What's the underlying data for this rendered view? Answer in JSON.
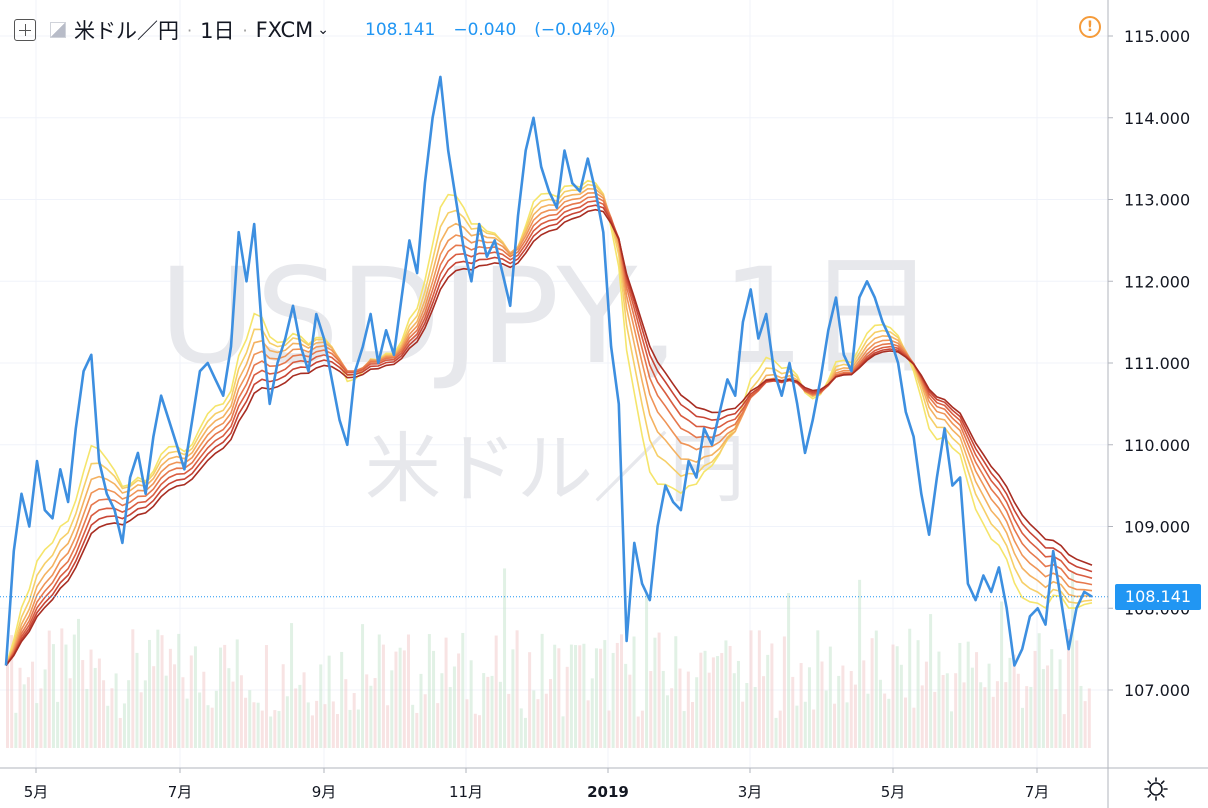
{
  "header": {
    "symbol": "米ドル／円",
    "interval": "1日",
    "exchange": "FXCM",
    "last_price": "108.141",
    "change": "−0.040",
    "change_pct": "(−0.04%)"
  },
  "watermark": {
    "line1": "USDJPY, 1日",
    "line2": "米ドル／円"
  },
  "price_label": "108.141",
  "colors": {
    "price_line": "#3d8fe0",
    "price_tag": "#2196f3",
    "alert": "#f59b3a",
    "ribbon": [
      "#f5e56b",
      "#f6cf68",
      "#f4b261",
      "#ef9457",
      "#e6784d",
      "#d95d41",
      "#c84535",
      "#a82d22"
    ]
  },
  "chart_data": {
    "type": "line",
    "x_ticks": [
      "5月",
      "7月",
      "9月",
      "11月",
      "2019",
      "3月",
      "5月",
      "7月"
    ],
    "ylim": [
      106.0,
      115.5
    ],
    "y_ticks": [
      "107.000",
      "108.000",
      "109.000",
      "110.000",
      "111.000",
      "112.000",
      "113.000",
      "114.000",
      "115.000"
    ],
    "last_value": 108.141,
    "series": [
      {
        "values": [
          107.3,
          108.7,
          109.4,
          109.0,
          109.8,
          109.2,
          109.1,
          109.7,
          109.3,
          110.2,
          110.9,
          111.1,
          109.8,
          109.4,
          109.2,
          108.8,
          109.6,
          109.9,
          109.4,
          110.1,
          110.6,
          110.3,
          110.0,
          109.7,
          110.3,
          110.9,
          111.0,
          110.8,
          110.6,
          111.2,
          112.6,
          112.0,
          112.7,
          111.4,
          110.5,
          111.0,
          111.3,
          111.7,
          111.2,
          110.9,
          111.6,
          111.3,
          110.8,
          110.3,
          110.0,
          110.9,
          111.2,
          111.6,
          111.0,
          111.4,
          111.1,
          111.8,
          112.5,
          112.1,
          113.2,
          114.0,
          114.5,
          113.6,
          113.0,
          112.4,
          112.0,
          112.7,
          112.3,
          112.5,
          112.1,
          111.7,
          112.8,
          113.6,
          114.0,
          113.4,
          113.1,
          112.9,
          113.6,
          113.2,
          113.1,
          113.5,
          113.1,
          112.6,
          111.2,
          110.5,
          107.6,
          108.8,
          108.3,
          108.1,
          109.0,
          109.5,
          109.3,
          109.2,
          109.8,
          109.6,
          110.2,
          110.0,
          110.4,
          110.8,
          110.6,
          111.5,
          111.9,
          111.3,
          111.6,
          110.9,
          110.6,
          111.0,
          110.5,
          109.9,
          110.3,
          110.8,
          111.4,
          111.8,
          111.1,
          110.9,
          111.8,
          112.0,
          111.8,
          111.5,
          111.3,
          111.0,
          110.4,
          110.1,
          109.4,
          108.9,
          109.6,
          110.2,
          109.5,
          109.6,
          108.3,
          108.1,
          108.4,
          108.2,
          108.5,
          108.0,
          107.3,
          107.5,
          107.9,
          108.0,
          107.8,
          108.7,
          108.1,
          107.5,
          108.0,
          108.2,
          108.141
        ],
        "color": "#3d8fe0"
      }
    ],
    "grid": true
  }
}
